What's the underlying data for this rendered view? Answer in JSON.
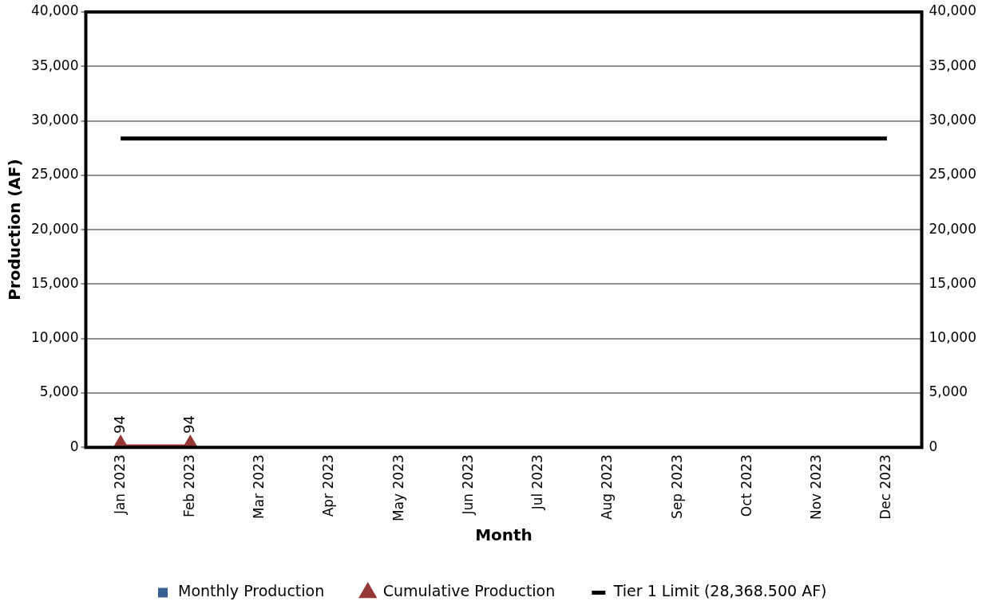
{
  "chart_data": {
    "type": "bar",
    "xlabel": "Month",
    "ylabel": "Production (AF)",
    "categories": [
      "Jan 2023",
      "Feb 2023",
      "Mar 2023",
      "Apr 2023",
      "May 2023",
      "Jun 2023",
      "Jul 2023",
      "Aug 2023",
      "Sep 2023",
      "Oct 2023",
      "Nov 2023",
      "Dec 2023"
    ],
    "series": [
      {
        "name": "Monthly Production",
        "color": "#376092",
        "values": [
          94,
          0,
          null,
          null,
          null,
          null,
          null,
          null,
          null,
          null,
          null,
          null
        ]
      },
      {
        "name": "Cumulative Production",
        "type": "line",
        "color": "#953735",
        "marker": "triangle",
        "values": [
          94,
          94,
          null,
          null,
          null,
          null,
          null,
          null,
          null,
          null,
          null,
          null
        ],
        "value_labels": [
          "94",
          "94",
          null,
          null,
          null,
          null,
          null,
          null,
          null,
          null,
          null,
          null
        ]
      },
      {
        "name": "Tier 1 Limit (28,368.500 AF)",
        "type": "line",
        "color": "#000000",
        "marker": "none",
        "values": [
          28368.5,
          28368.5,
          28368.5,
          28368.5,
          28368.5,
          28368.5,
          28368.5,
          28368.5,
          28368.5,
          28368.5,
          28368.5,
          28368.5
        ]
      }
    ],
    "ylim": [
      0,
      40000
    ],
    "yticks": [
      0,
      {
        "value": 5000,
        "label": "5,000"
      },
      {
        "value": 10000,
        "label": "10,000"
      },
      {
        "value": 15000,
        "label": "15,000"
      },
      {
        "value": 20000,
        "label": "20,000"
      },
      {
        "value": 25000,
        "label": "25,000"
      },
      {
        "value": 30000,
        "label": "30,000"
      },
      {
        "value": 35000,
        "label": "35,000"
      },
      {
        "value": 40000,
        "label": "40,000"
      }
    ],
    "y2lim": [
      0,
      40000
    ],
    "y2ticks": [
      0,
      {
        "value": 5000,
        "label": "5,000"
      },
      {
        "value": 10000,
        "label": "10,000"
      },
      {
        "value": 15000,
        "label": "15,000"
      },
      {
        "value": 20000,
        "label": "20,000"
      },
      {
        "value": 25000,
        "label": "25,000"
      },
      {
        "value": 30000,
        "label": "30,000"
      },
      {
        "value": 35000,
        "label": "35,000"
      },
      {
        "value": 40000,
        "label": "40,000"
      }
    ],
    "grid": "y",
    "legend": "bottom"
  }
}
